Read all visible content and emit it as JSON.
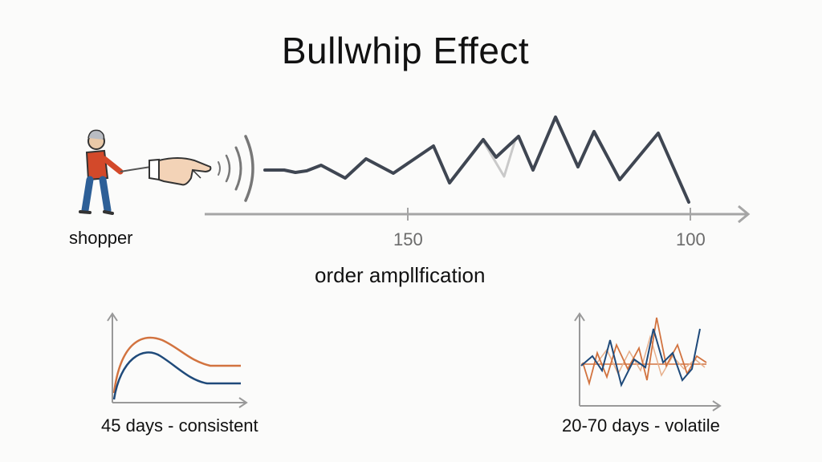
{
  "title": "Bullwhip Effect",
  "labels": {
    "shopper": "shopper",
    "axis_caption": "order ampllfication",
    "tick_left": "150",
    "tick_right": "100",
    "left_panel": "45 days - consistent",
    "right_panel": "20-70 days - volatile"
  },
  "colors": {
    "line_dark": "#3f4652",
    "line_light": "#c9c9c9",
    "orange": "#d2733f",
    "blue": "#1f4a7a",
    "axis": "#a5a5a5"
  },
  "icons": {
    "shopper": "person-pulling-rope-icon",
    "hand": "hand-icon",
    "signal": "sound-waves-icon"
  }
}
